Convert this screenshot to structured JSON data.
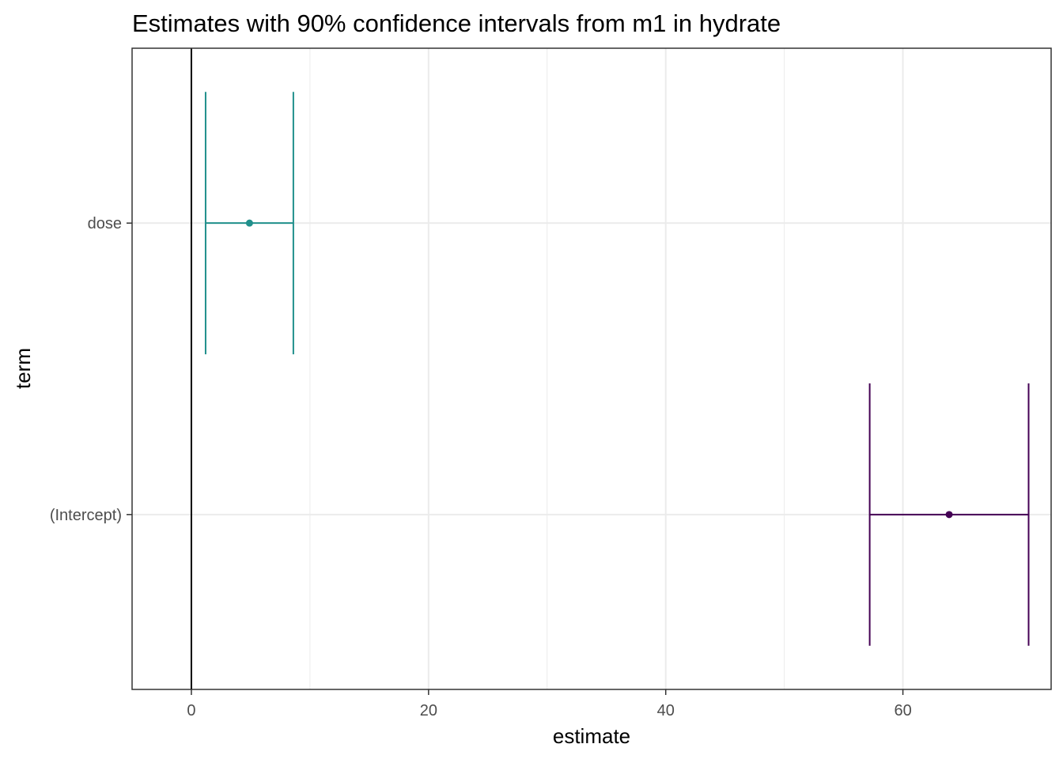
{
  "chart_data": {
    "type": "errorbar",
    "title": "Estimates with 90% confidence intervals from m1 in hydrate",
    "xlabel": "estimate",
    "ylabel": "term",
    "xlim": [
      -5,
      72.5
    ],
    "x_ticks": [
      0,
      20,
      40,
      60
    ],
    "categories": [
      "(Intercept)",
      "dose"
    ],
    "grid": true,
    "legend": "none",
    "reference_line_x": 0,
    "series": [
      {
        "term": "dose",
        "estimate": 4.9,
        "conf_low": 1.2,
        "conf_high": 8.6,
        "color": "#21908C"
      },
      {
        "term": "(Intercept)",
        "estimate": 63.9,
        "conf_low": 57.2,
        "conf_high": 70.6,
        "color": "#440154"
      }
    ]
  },
  "colors": {
    "panel_border": "#333333",
    "grid": "#ebebeb",
    "reference_line": "#000000",
    "tick": "#333333"
  }
}
